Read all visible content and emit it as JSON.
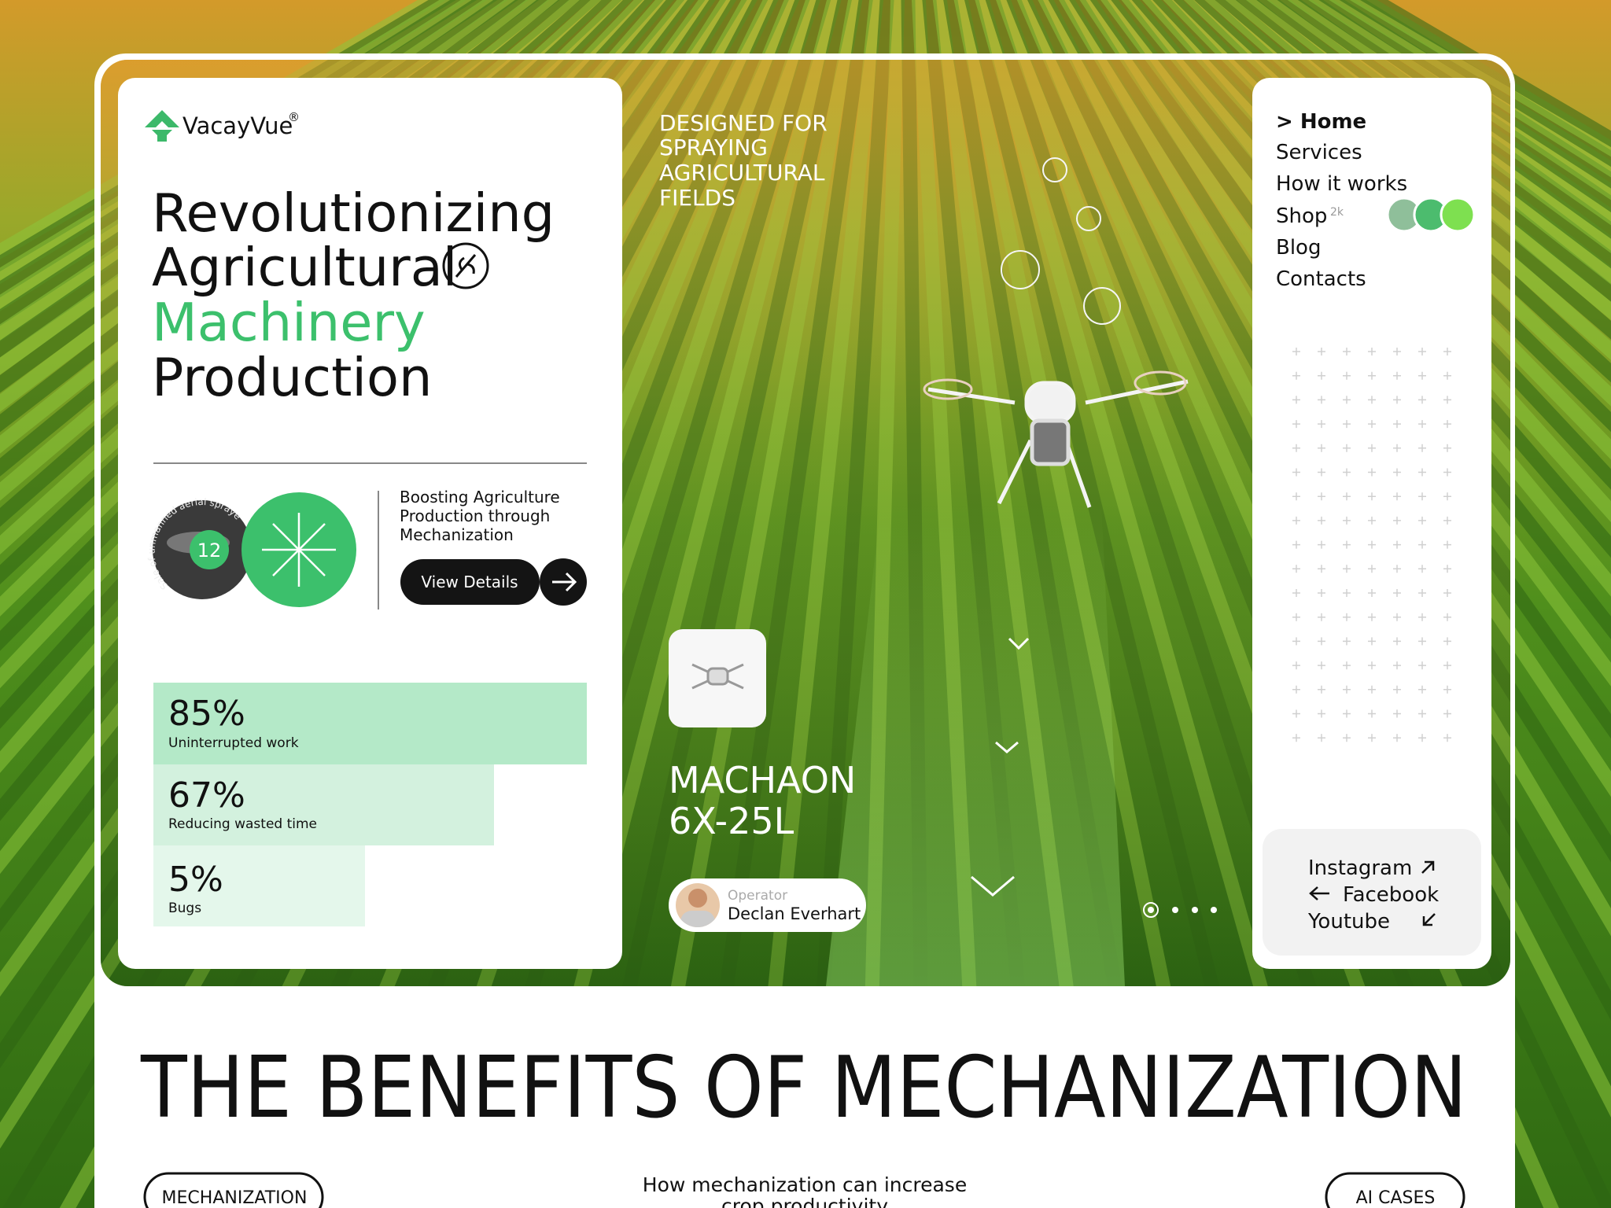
{
  "header": {
    "brand": "VacayVue",
    "registered": "®"
  },
  "hero": {
    "headline": [
      "Revolutionizing",
      "Agricultural",
      "Machinery",
      "Production"
    ],
    "badge": {
      "count": "12",
      "ring_text": "Sale of unmanned aerial sprayers for"
    },
    "promo": {
      "lines": [
        "Boosting Agriculture",
        "Production through",
        "Mechanization"
      ],
      "button": "View Details"
    },
    "stats": [
      {
        "value": "85%",
        "label": "Uninterrupted work"
      },
      {
        "value": "67%",
        "label": "Reducing wasted time"
      },
      {
        "value": "5%",
        "label": "Bugs"
      }
    ],
    "tagline": [
      "DESIGNED FOR",
      "SPRAYING",
      "AGRICULTURAL",
      "FIELDS"
    ],
    "product": [
      "MACHAON",
      "6X-25L"
    ],
    "operator": {
      "role": "Operator",
      "name": "Declan Everhart"
    }
  },
  "nav": {
    "items": [
      "> Home",
      "Services",
      "How it works",
      "Shop",
      "Blog",
      "Contacts"
    ],
    "shop_count": "2k"
  },
  "social": [
    "Instagram",
    "Facebook",
    "Youtube"
  ],
  "section": {
    "title": "THE BENEFITS OF MECHANIZATION",
    "tags": [
      "MECHANIZATION",
      "AI CASES"
    ],
    "intro": [
      "How mechanization can increase",
      "crop productivity"
    ]
  }
}
